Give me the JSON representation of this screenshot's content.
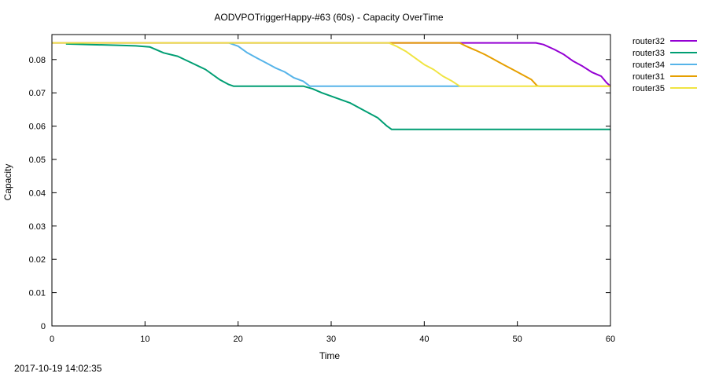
{
  "chart_data": {
    "type": "line",
    "title": "AODVPOTriggerHappy-#63 (60s) - Capacity OverTime",
    "xlabel": "Time",
    "ylabel": "Capacity",
    "xlim": [
      0,
      60
    ],
    "ylim": [
      0,
      0.0875
    ],
    "x_ticks": [
      "0",
      "10",
      "20",
      "30",
      "40",
      "50",
      "60"
    ],
    "y_ticks": [
      "0",
      "0.01",
      "0.02",
      "0.03",
      "0.04",
      "0.05",
      "0.06",
      "0.07",
      "0.08"
    ],
    "grid": false,
    "legend_position": "outside-top-right",
    "series": [
      {
        "name": "router32",
        "color": "#9400d3",
        "points": [
          [
            0,
            0.085
          ],
          [
            43.8,
            0.085
          ],
          [
            52,
            0.085
          ],
          [
            52.8,
            0.0845
          ],
          [
            54,
            0.083
          ],
          [
            55,
            0.0815
          ],
          [
            56,
            0.0795
          ],
          [
            57,
            0.078
          ],
          [
            58,
            0.0762
          ],
          [
            59,
            0.075
          ],
          [
            59.6,
            0.073
          ],
          [
            60,
            0.072
          ]
        ]
      },
      {
        "name": "router33",
        "color": "#009e73",
        "points": [
          [
            1.5,
            0.0847
          ],
          [
            4,
            0.0845
          ],
          [
            7,
            0.0843
          ],
          [
            9,
            0.0841
          ],
          [
            10.5,
            0.0838
          ],
          [
            12,
            0.082
          ],
          [
            13.5,
            0.081
          ],
          [
            15,
            0.079
          ],
          [
            16.5,
            0.077
          ],
          [
            18,
            0.074
          ],
          [
            19,
            0.0725
          ],
          [
            19.5,
            0.072
          ],
          [
            27,
            0.072
          ],
          [
            28,
            0.0712
          ],
          [
            29,
            0.07
          ],
          [
            30,
            0.069
          ],
          [
            31,
            0.068
          ],
          [
            32,
            0.067
          ],
          [
            33,
            0.0655
          ],
          [
            34,
            0.064
          ],
          [
            35,
            0.0625
          ],
          [
            36,
            0.06
          ],
          [
            36.5,
            0.059
          ],
          [
            60,
            0.059
          ]
        ]
      },
      {
        "name": "router34",
        "color": "#56b4e9",
        "points": [
          [
            19,
            0.085
          ],
          [
            20,
            0.084
          ],
          [
            21,
            0.082
          ],
          [
            22,
            0.0805
          ],
          [
            23,
            0.079
          ],
          [
            24,
            0.0775
          ],
          [
            25,
            0.0763
          ],
          [
            26,
            0.0745
          ],
          [
            27,
            0.0735
          ],
          [
            27.7,
            0.072
          ],
          [
            43.8,
            0.072
          ]
        ]
      },
      {
        "name": "router31",
        "color": "#e69f00",
        "points": [
          [
            36.2,
            0.085
          ],
          [
            43.8,
            0.085
          ],
          [
            44.5,
            0.084
          ],
          [
            45.5,
            0.0828
          ],
          [
            46.5,
            0.0815
          ],
          [
            47.5,
            0.08
          ],
          [
            48.5,
            0.0785
          ],
          [
            49.5,
            0.077
          ],
          [
            50.5,
            0.0755
          ],
          [
            51.5,
            0.074
          ],
          [
            52.1,
            0.0722
          ],
          [
            52.3,
            0.072
          ],
          [
            60,
            0.072
          ]
        ]
      },
      {
        "name": "router35",
        "color": "#f0e442",
        "points": [
          [
            0,
            0.085
          ],
          [
            36.2,
            0.085
          ],
          [
            37,
            0.084
          ],
          [
            38,
            0.0825
          ],
          [
            39,
            0.0805
          ],
          [
            40,
            0.0785
          ],
          [
            41,
            0.077
          ],
          [
            42,
            0.075
          ],
          [
            43,
            0.0735
          ],
          [
            43.8,
            0.072
          ],
          [
            60,
            0.072
          ]
        ]
      }
    ]
  },
  "footer": {
    "timestamp": "2017-10-19 14:02:35"
  }
}
